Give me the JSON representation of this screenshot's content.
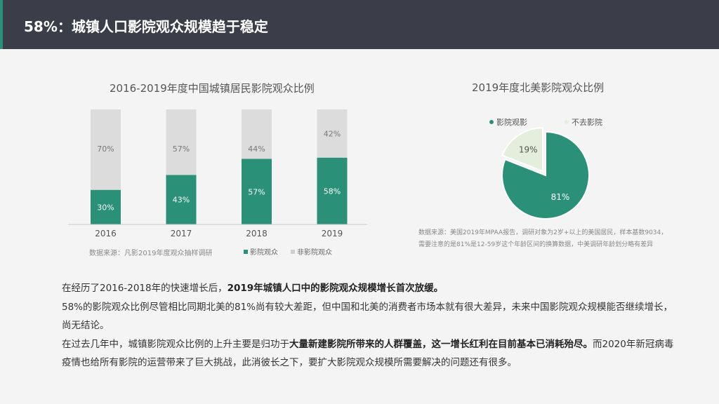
{
  "header": {
    "title": "58%：城镇人口影院观众规模趋于稳定"
  },
  "colors": {
    "header_bg": "#3b3e48",
    "accent": "#2a9078",
    "green": "#2a9078",
    "gray": "#dcdcdc",
    "light_green": "#e3efdc"
  },
  "chart_data": [
    {
      "type": "bar",
      "stacked": true,
      "title": "2016-2019年度中国城镇居民影院观众比例",
      "categories": [
        "2016",
        "2017",
        "2018",
        "2019"
      ],
      "series": [
        {
          "name": "影院观众",
          "values": [
            30,
            43,
            57,
            58
          ],
          "labels": [
            "30%",
            "43%",
            "57%",
            "58%"
          ]
        },
        {
          "name": "非影院观众",
          "values": [
            70,
            57,
            44,
            42
          ],
          "labels": [
            "70%",
            "57%",
            "44%",
            "42%"
          ]
        }
      ],
      "ylim": [
        0,
        100
      ],
      "source": "数据来源：凡影2019年度观众抽样调研"
    },
    {
      "type": "pie",
      "title": "2019年度北美影院观众比例",
      "labels": [
        "影院观影",
        "不去影院"
      ],
      "values": [
        81,
        19
      ],
      "value_labels": [
        "81%",
        "19%"
      ],
      "note_lines": [
        "数据来源：美国2019年MPAA报告，调研对象为2岁+以上的美国居民，样本基数9034，",
        "需要注意的是81%是12-59岁这个年龄区间的换算数据，中美调研年龄划分略有差异"
      ]
    }
  ],
  "body": {
    "p1_a": "在经历了2016-2018年的快速增长后，",
    "p1_b": "2019年城镇人口中的影院观众规模增长首次放缓。",
    "p2": "58%的影院观众比例尽管相比同期北美的81%尚有较大差距，但中国和北美的消费者市场本就有很大差异，未来中国影院观众规模能否继续增长，尚无结论。",
    "p3_a": "在过去几年中，城镇影院观众比例的上升主要是归功于",
    "p3_b": "大量新建影院所带来的人群覆盖，这一增长红利在目前基本已消耗殆尽。",
    "p3_c": "而2020年新冠病毒疫情也给所有影院的运营带来了巨大挑战，此消彼长之下，要扩大影院观众规模所需要解决的问题还有很多。"
  }
}
